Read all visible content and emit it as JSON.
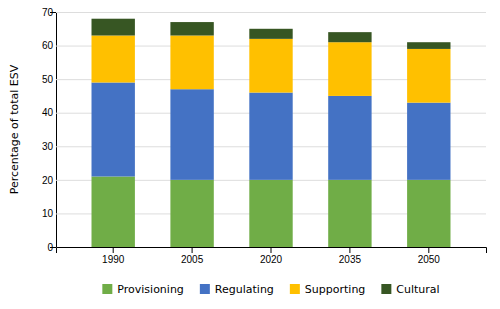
{
  "chart_data": {
    "type": "bar",
    "stacked": true,
    "categories": [
      "1990",
      "2005",
      "2020",
      "2035",
      "2050"
    ],
    "series": [
      {
        "name": "Provisioning",
        "color": "#70ad47",
        "values": [
          21,
          20,
          20,
          20,
          20
        ]
      },
      {
        "name": "Regulating",
        "color": "#4472c4",
        "values": [
          28,
          27,
          26,
          25,
          23
        ]
      },
      {
        "name": "Supporting",
        "color": "#ffc000",
        "values": [
          14,
          16,
          16,
          16,
          16
        ]
      },
      {
        "name": "Cultural",
        "color": "#375623",
        "values": [
          5,
          4,
          3,
          3,
          2
        ]
      }
    ],
    "ylabel": "Percentage of total ESV",
    "ylim": [
      0,
      70
    ],
    "yticks": [
      0,
      10,
      20,
      30,
      40,
      50,
      60,
      70
    ],
    "grid": true,
    "legend": "bottom"
  }
}
